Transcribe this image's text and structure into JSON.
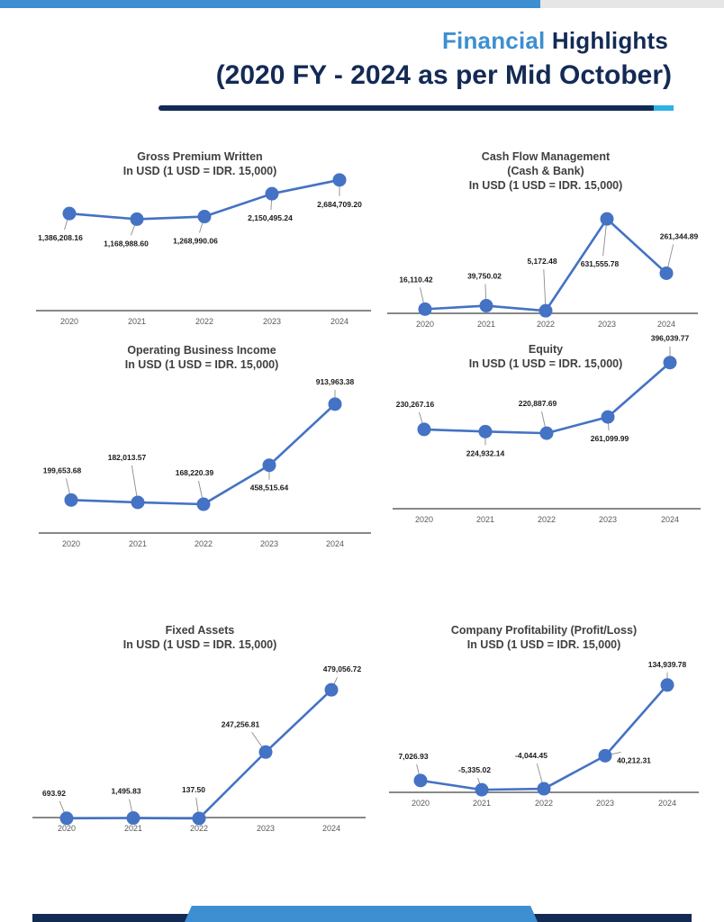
{
  "header": {
    "title_accent": "Financial",
    "title_main": "Highlights",
    "subtitle": "(2020 FY - 2024 as per Mid October)"
  },
  "colors": {
    "accent": "#3d8fd1",
    "navy": "#132a55",
    "series": "#4472c4",
    "highlight": "#2fb2e6"
  },
  "chart_data": [
    {
      "type": "line",
      "title": [
        "Gross Premium Written",
        "In USD (1 USD = IDR. 15,000)"
      ],
      "categories": [
        "2020",
        "2021",
        "2022",
        "2023",
        "2024"
      ],
      "values": [
        1386208.16,
        1168988.6,
        1268990.06,
        2150495.24,
        2684709.2
      ],
      "labels": [
        "1,386,208.16",
        "1,168,988.60",
        "1,268,990.06",
        "2,150,495.24",
        "2,684,709.20"
      ],
      "ylim": [
        -800000,
        3200000
      ]
    },
    {
      "type": "line",
      "title": [
        "Cash Flow Management",
        "(Cash & Bank)",
        "In USD (1 USD = IDR. 15,000)"
      ],
      "categories": [
        "2020",
        "2021",
        "2022",
        "2023",
        "2024"
      ],
      "values": [
        16110.42,
        39750.02,
        5172.48,
        631555.78,
        261344.89
      ],
      "labels": [
        "16,110.42",
        "39,750.02",
        "5,172.48",
        "631,555.78",
        "261,344.89"
      ],
      "ylim": [
        0,
        700000
      ]
    },
    {
      "type": "line",
      "title": [
        "Operating Business Income",
        "In USD (1 USD = IDR. 15,000)"
      ],
      "categories": [
        "2020",
        "2021",
        "2022",
        "2023",
        "2024"
      ],
      "values": [
        199653.68,
        182013.57,
        168220.39,
        458515.64,
        913963.38
      ],
      "labels": [
        "199,653.68",
        "182,013.57",
        "168,220.39",
        "458,515.64",
        "913,963.38"
      ],
      "ylim": [
        -100000,
        1000000
      ]
    },
    {
      "type": "line",
      "title": [
        "Equity",
        "In USD (1 USD = IDR. 15,000)"
      ],
      "categories": [
        "2020",
        "2021",
        "2022",
        "2023",
        "2024"
      ],
      "values": [
        230267.16,
        224932.14,
        220887.69,
        261099.99,
        396039.77
      ],
      "labels": [
        "230,267.16",
        "224,932.14",
        "220,887.69",
        "261,099.99",
        "396,039.77"
      ],
      "ylim": [
        0,
        420000
      ]
    },
    {
      "type": "line",
      "title": [
        "Fixed Assets",
        "In USD (1 USD = IDR. 15,000)"
      ],
      "categories": [
        "2020",
        "2021",
        "2022",
        "2023",
        "2024"
      ],
      "values": [
        693.92,
        1495.83,
        137.5,
        247256.81,
        479056.72
      ],
      "labels": [
        "693.92",
        "1,495.83",
        "137.50",
        "247,256.81",
        "479,056.72"
      ],
      "ylim": [
        0,
        560000
      ]
    },
    {
      "type": "line",
      "title": [
        "Company Profitability (Profit/Loss)",
        "In USD (1 USD = IDR. 15,000)"
      ],
      "categories": [
        "2020",
        "2021",
        "2022",
        "2023",
        "2024"
      ],
      "values": [
        7026.93,
        -5335.02,
        -4044.45,
        40212.31,
        134939.78
      ],
      "labels": [
        "7,026.93",
        "-5,335.02",
        "-4,044.45",
        "40,212.31",
        "134,939.78"
      ],
      "ylim": [
        -10000,
        160000
      ]
    }
  ]
}
